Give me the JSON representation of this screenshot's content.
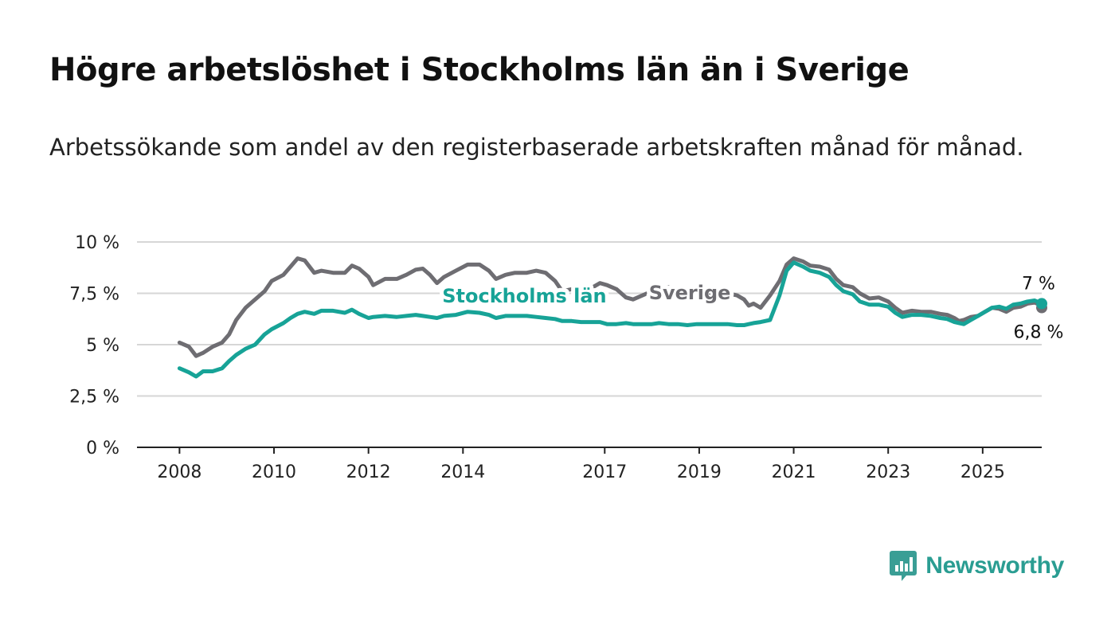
{
  "title": "Högre arbetslöshet i Stockholms län än i Sverige",
  "subtitle": "Arbetssökande som andel av den registerbaserade arbetskraften månad för månad.",
  "brand": {
    "name": "Newsworthy",
    "logo_icon": "bar-chart-speech-bubble-icon",
    "color": "#3a9e95"
  },
  "chart_data": {
    "type": "line",
    "title": "",
    "xlabel": "",
    "ylabel": "",
    "ylim": [
      0,
      10
    ],
    "xlim": [
      2007.1,
      2026.25
    ],
    "y_ticks": [
      0,
      2.5,
      5,
      7.5,
      10
    ],
    "y_tick_labels": [
      "0 %",
      "2,5 %",
      "5 %",
      "7,5 %",
      "10 %"
    ],
    "x_ticks": [
      2008,
      2010,
      2012,
      2014,
      2017,
      2019,
      2021,
      2023,
      2025
    ],
    "x_tick_labels": [
      "2008",
      "2010",
      "2012",
      "2014",
      "2017",
      "2019",
      "2021",
      "2023",
      "2025"
    ],
    "grid": true,
    "legend": "inline labels",
    "series": [
      {
        "name": "Sverige",
        "color": "#6e6d72",
        "label_position": [
          2018.8,
          7.2
        ],
        "end_label": "6,8 %",
        "points": [
          [
            2008.0,
            5.1
          ],
          [
            2008.2,
            4.9
          ],
          [
            2008.35,
            4.45
          ],
          [
            2008.5,
            4.6
          ],
          [
            2008.7,
            4.9
          ],
          [
            2008.9,
            5.1
          ],
          [
            2009.05,
            5.5
          ],
          [
            2009.2,
            6.2
          ],
          [
            2009.4,
            6.8
          ],
          [
            2009.6,
            7.2
          ],
          [
            2009.8,
            7.6
          ],
          [
            2009.95,
            8.1
          ],
          [
            2010.2,
            8.4
          ],
          [
            2010.35,
            8.8
          ],
          [
            2010.5,
            9.2
          ],
          [
            2010.65,
            9.1
          ],
          [
            2010.85,
            8.5
          ],
          [
            2011.0,
            8.6
          ],
          [
            2011.25,
            8.5
          ],
          [
            2011.5,
            8.5
          ],
          [
            2011.65,
            8.85
          ],
          [
            2011.8,
            8.7
          ],
          [
            2012.0,
            8.3
          ],
          [
            2012.1,
            7.9
          ],
          [
            2012.35,
            8.2
          ],
          [
            2012.6,
            8.2
          ],
          [
            2012.8,
            8.4
          ],
          [
            2013.0,
            8.65
          ],
          [
            2013.15,
            8.7
          ],
          [
            2013.3,
            8.4
          ],
          [
            2013.45,
            8.0
          ],
          [
            2013.6,
            8.3
          ],
          [
            2013.85,
            8.6
          ],
          [
            2014.1,
            8.9
          ],
          [
            2014.35,
            8.9
          ],
          [
            2014.55,
            8.6
          ],
          [
            2014.7,
            8.2
          ],
          [
            2014.9,
            8.4
          ],
          [
            2015.1,
            8.5
          ],
          [
            2015.35,
            8.5
          ],
          [
            2015.55,
            8.6
          ],
          [
            2015.75,
            8.5
          ],
          [
            2015.95,
            8.1
          ],
          [
            2016.1,
            7.6
          ],
          [
            2016.3,
            7.7
          ],
          [
            2016.5,
            7.8
          ],
          [
            2016.75,
            7.8
          ],
          [
            2016.9,
            8.0
          ],
          [
            2017.05,
            7.9
          ],
          [
            2017.25,
            7.7
          ],
          [
            2017.45,
            7.3
          ],
          [
            2017.6,
            7.2
          ],
          [
            2017.8,
            7.4
          ],
          [
            2018.0,
            7.6
          ],
          [
            2018.15,
            7.8
          ],
          [
            2018.35,
            7.8
          ],
          [
            2018.55,
            7.6
          ],
          [
            2018.75,
            7.3
          ],
          [
            2018.95,
            7.4
          ],
          [
            2019.2,
            7.4
          ],
          [
            2019.4,
            7.4
          ],
          [
            2019.6,
            7.5
          ],
          [
            2019.8,
            7.4
          ],
          [
            2019.95,
            7.2
          ],
          [
            2020.05,
            6.9
          ],
          [
            2020.15,
            7.0
          ],
          [
            2020.3,
            6.8
          ],
          [
            2020.5,
            7.4
          ],
          [
            2020.7,
            8.1
          ],
          [
            2020.85,
            8.9
          ],
          [
            2021.0,
            9.2
          ],
          [
            2021.2,
            9.05
          ],
          [
            2021.35,
            8.85
          ],
          [
            2021.55,
            8.8
          ],
          [
            2021.75,
            8.65
          ],
          [
            2021.9,
            8.2
          ],
          [
            2022.05,
            7.9
          ],
          [
            2022.25,
            7.8
          ],
          [
            2022.4,
            7.5
          ],
          [
            2022.6,
            7.25
          ],
          [
            2022.8,
            7.3
          ],
          [
            2023.0,
            7.1
          ],
          [
            2023.15,
            6.8
          ],
          [
            2023.3,
            6.55
          ],
          [
            2023.5,
            6.65
          ],
          [
            2023.7,
            6.6
          ],
          [
            2023.9,
            6.6
          ],
          [
            2024.1,
            6.5
          ],
          [
            2024.25,
            6.45
          ],
          [
            2024.4,
            6.3
          ],
          [
            2024.5,
            6.15
          ],
          [
            2024.6,
            6.2
          ],
          [
            2024.75,
            6.35
          ],
          [
            2024.9,
            6.4
          ],
          [
            2025.05,
            6.6
          ],
          [
            2025.2,
            6.8
          ],
          [
            2025.35,
            6.75
          ],
          [
            2025.5,
            6.6
          ],
          [
            2025.65,
            6.8
          ],
          [
            2025.8,
            6.85
          ],
          [
            2025.95,
            7.0
          ],
          [
            2026.1,
            7.05
          ],
          [
            2026.2,
            6.95
          ],
          [
            2026.25,
            6.8
          ]
        ]
      },
      {
        "name": "Stockholms län",
        "color": "#17a397",
        "label_position": [
          2015.3,
          7.05
        ],
        "end_label": "7 %",
        "points": [
          [
            2008.0,
            3.85
          ],
          [
            2008.2,
            3.65
          ],
          [
            2008.35,
            3.45
          ],
          [
            2008.5,
            3.7
          ],
          [
            2008.7,
            3.7
          ],
          [
            2008.9,
            3.85
          ],
          [
            2009.05,
            4.2
          ],
          [
            2009.2,
            4.5
          ],
          [
            2009.4,
            4.8
          ],
          [
            2009.6,
            5.0
          ],
          [
            2009.8,
            5.5
          ],
          [
            2009.95,
            5.75
          ],
          [
            2010.2,
            6.05
          ],
          [
            2010.35,
            6.3
          ],
          [
            2010.5,
            6.5
          ],
          [
            2010.65,
            6.6
          ],
          [
            2010.85,
            6.5
          ],
          [
            2011.0,
            6.65
          ],
          [
            2011.25,
            6.65
          ],
          [
            2011.5,
            6.55
          ],
          [
            2011.65,
            6.7
          ],
          [
            2011.8,
            6.5
          ],
          [
            2012.0,
            6.3
          ],
          [
            2012.1,
            6.35
          ],
          [
            2012.35,
            6.4
          ],
          [
            2012.6,
            6.35
          ],
          [
            2012.8,
            6.4
          ],
          [
            2013.0,
            6.45
          ],
          [
            2013.15,
            6.4
          ],
          [
            2013.3,
            6.35
          ],
          [
            2013.45,
            6.3
          ],
          [
            2013.6,
            6.4
          ],
          [
            2013.85,
            6.45
          ],
          [
            2014.1,
            6.6
          ],
          [
            2014.35,
            6.55
          ],
          [
            2014.55,
            6.45
          ],
          [
            2014.7,
            6.3
          ],
          [
            2014.9,
            6.4
          ],
          [
            2015.1,
            6.4
          ],
          [
            2015.35,
            6.4
          ],
          [
            2015.55,
            6.35
          ],
          [
            2015.75,
            6.3
          ],
          [
            2015.95,
            6.25
          ],
          [
            2016.1,
            6.15
          ],
          [
            2016.3,
            6.15
          ],
          [
            2016.5,
            6.1
          ],
          [
            2016.75,
            6.1
          ],
          [
            2016.9,
            6.1
          ],
          [
            2017.05,
            6.0
          ],
          [
            2017.25,
            6.0
          ],
          [
            2017.45,
            6.05
          ],
          [
            2017.6,
            6.0
          ],
          [
            2017.8,
            6.0
          ],
          [
            2018.0,
            6.0
          ],
          [
            2018.15,
            6.05
          ],
          [
            2018.35,
            6.0
          ],
          [
            2018.55,
            6.0
          ],
          [
            2018.75,
            5.95
          ],
          [
            2018.95,
            6.0
          ],
          [
            2019.2,
            6.0
          ],
          [
            2019.4,
            6.0
          ],
          [
            2019.6,
            6.0
          ],
          [
            2019.8,
            5.95
          ],
          [
            2019.95,
            5.95
          ],
          [
            2020.05,
            6.0
          ],
          [
            2020.15,
            6.05
          ],
          [
            2020.3,
            6.1
          ],
          [
            2020.5,
            6.2
          ],
          [
            2020.7,
            7.4
          ],
          [
            2020.85,
            8.6
          ],
          [
            2021.0,
            9.0
          ],
          [
            2021.2,
            8.8
          ],
          [
            2021.35,
            8.6
          ],
          [
            2021.55,
            8.5
          ],
          [
            2021.75,
            8.3
          ],
          [
            2021.9,
            7.9
          ],
          [
            2022.05,
            7.6
          ],
          [
            2022.25,
            7.45
          ],
          [
            2022.4,
            7.1
          ],
          [
            2022.6,
            6.95
          ],
          [
            2022.8,
            6.95
          ],
          [
            2023.0,
            6.85
          ],
          [
            2023.15,
            6.55
          ],
          [
            2023.3,
            6.35
          ],
          [
            2023.5,
            6.45
          ],
          [
            2023.7,
            6.45
          ],
          [
            2023.9,
            6.4
          ],
          [
            2024.1,
            6.3
          ],
          [
            2024.25,
            6.25
          ],
          [
            2024.4,
            6.1
          ],
          [
            2024.5,
            6.05
          ],
          [
            2024.6,
            6.0
          ],
          [
            2024.75,
            6.2
          ],
          [
            2024.9,
            6.4
          ],
          [
            2025.05,
            6.6
          ],
          [
            2025.2,
            6.8
          ],
          [
            2025.35,
            6.85
          ],
          [
            2025.5,
            6.75
          ],
          [
            2025.65,
            6.95
          ],
          [
            2025.8,
            7.0
          ],
          [
            2025.95,
            7.1
          ],
          [
            2026.1,
            7.15
          ],
          [
            2026.2,
            7.05
          ],
          [
            2026.25,
            7.0
          ]
        ]
      }
    ]
  }
}
